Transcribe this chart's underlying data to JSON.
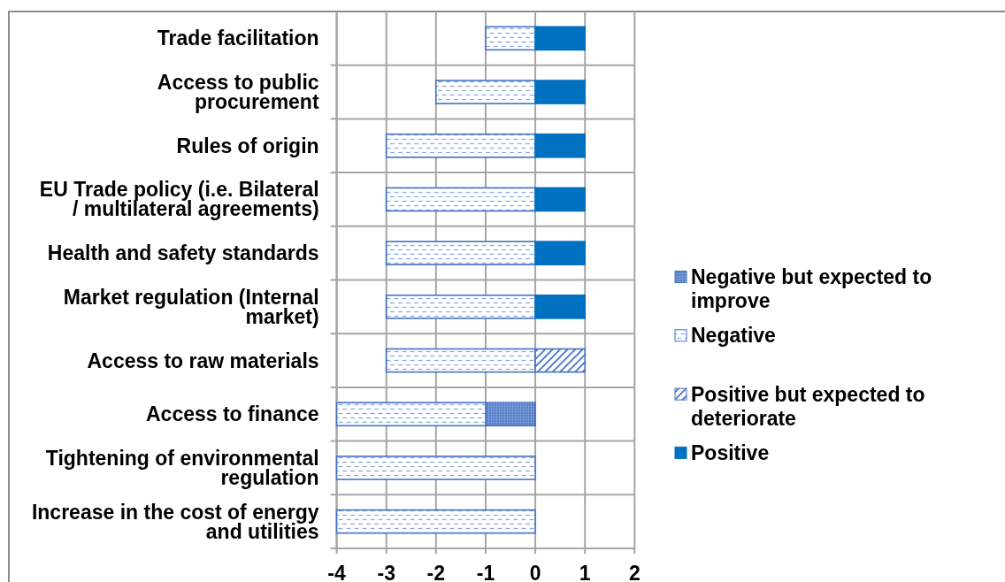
{
  "chart_data": {
    "type": "bar",
    "orientation": "horizontal",
    "stacked": true,
    "categories": [
      "Trade facilitation",
      "Access to public procurement",
      "Rules of origin",
      "EU Trade policy (i.e. Bilateral / multilateral agreements)",
      "Health and safety standards",
      "Market regulation (Internal market)",
      "Access to raw materials",
      "Access to finance",
      "Tightening of environmental regulation",
      "Increase in the cost of energy and utilities"
    ],
    "series": [
      {
        "name": "Negative but expected to improve",
        "color": "#4472c4",
        "values": [
          null,
          null,
          null,
          null,
          null,
          null,
          null,
          -1,
          null,
          null
        ]
      },
      {
        "name": "Negative",
        "color": "#4472c4",
        "values": [
          -1,
          -2,
          -3,
          -3,
          -3,
          -3,
          -3,
          -3,
          -4,
          -4
        ]
      },
      {
        "name": "Positive but expected to deteriorate",
        "color": "#4472c4",
        "values": [
          null,
          null,
          null,
          null,
          null,
          null,
          1,
          null,
          null,
          null
        ]
      },
      {
        "name": "Positive",
        "color": "#0070c0",
        "values": [
          1,
          1,
          1,
          1,
          1,
          1,
          null,
          null,
          null,
          null
        ]
      }
    ],
    "xlim": [
      -4,
      2
    ],
    "xticks": [
      -4,
      -3,
      -2,
      -1,
      0,
      1,
      2
    ],
    "grid": true,
    "legend": "right"
  }
}
